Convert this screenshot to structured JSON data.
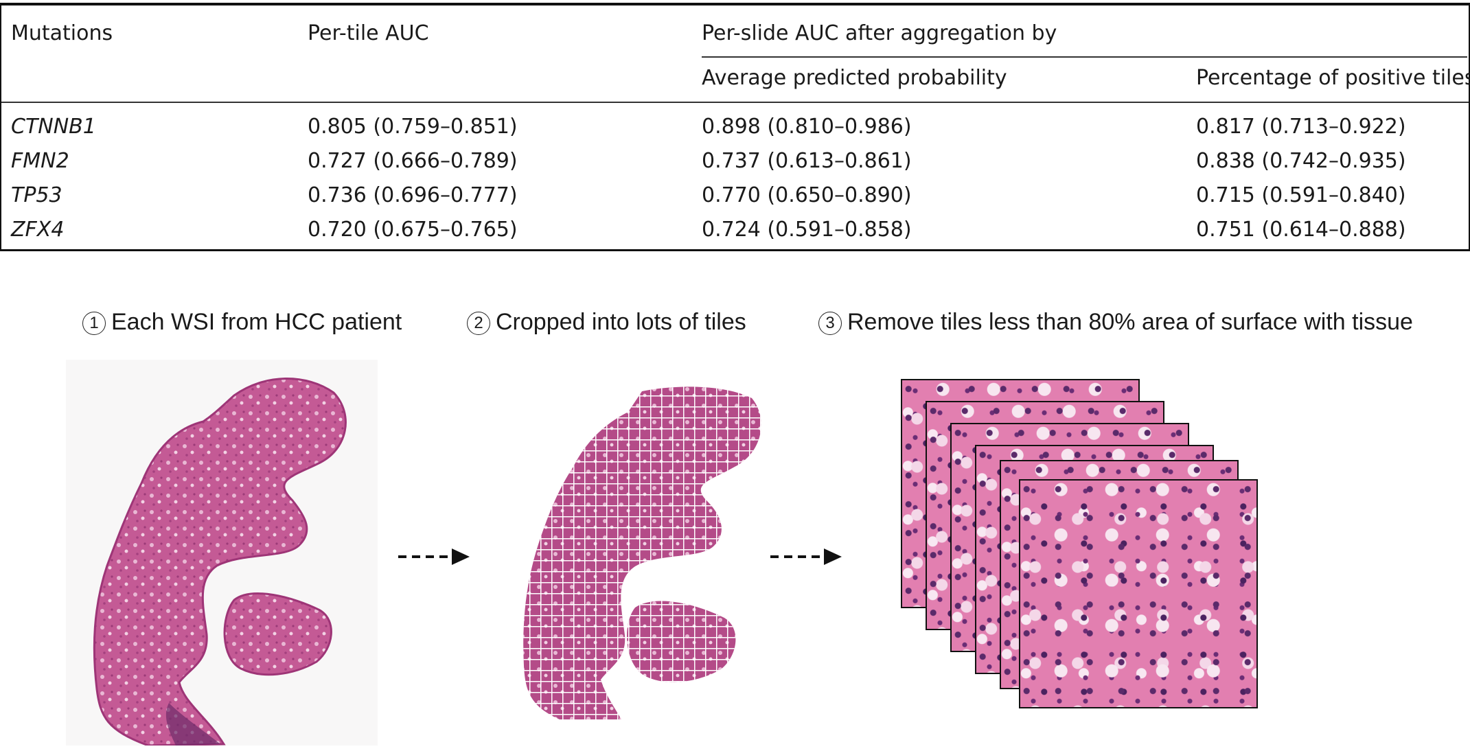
{
  "table": {
    "headers": {
      "col1": "Mutations",
      "col2": "Per-tile AUC",
      "group": "Per-slide AUC after aggregation by",
      "col3": "Average predicted probability",
      "col4": "Percentage of positive tiles"
    },
    "rows": [
      {
        "gene": "CTNNB1",
        "tile": "0.805 (0.759–0.851)",
        "avg": "0.898 (0.810–0.986)",
        "pct": "0.817 (0.713–0.922)"
      },
      {
        "gene": "FMN2",
        "tile": "0.727 (0.666–0.789)",
        "avg": "0.737 (0.613–0.861)",
        "pct": "0.838 (0.742–0.935)"
      },
      {
        "gene": "TP53",
        "tile": "0.736 (0.696–0.777)",
        "avg": "0.770 (0.650–0.890)",
        "pct": "0.715 (0.591–0.840)"
      },
      {
        "gene": "ZFX4",
        "tile": "0.720 (0.675–0.765)",
        "avg": "0.724 (0.591–0.858)",
        "pct": "0.751 (0.614–0.888)"
      }
    ]
  },
  "figure": {
    "steps": [
      {
        "num": "1",
        "text": "Each WSI from HCC patient"
      },
      {
        "num": "2",
        "text": "Cropped into lots of tiles"
      },
      {
        "num": "3",
        "text": "Remove tiles less than 80% area of surface with tissue"
      }
    ],
    "colors": {
      "tissue": "#c0508f",
      "tissue_dark": "#8e2d6c",
      "tile": "#e27fb0",
      "arrow": "#111111"
    }
  }
}
